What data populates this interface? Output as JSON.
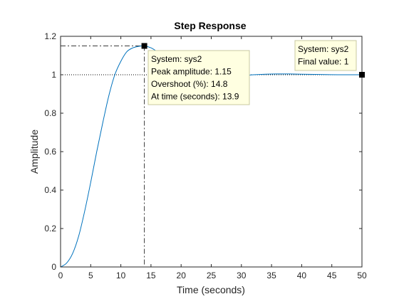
{
  "chart_data": {
    "type": "line",
    "title": "Step Response",
    "xlabel": "Time (seconds)",
    "ylabel": "Amplitude",
    "xlim": [
      0,
      50
    ],
    "ylim": [
      0,
      1.2
    ],
    "xticks": [
      0,
      5,
      10,
      15,
      20,
      25,
      30,
      35,
      40,
      45,
      50
    ],
    "yticks": [
      0,
      0.2,
      0.4,
      0.6,
      0.8,
      1,
      1.2
    ],
    "xtick_labels": [
      "0",
      "5",
      "10",
      "15",
      "20",
      "25",
      "30",
      "35",
      "40",
      "45",
      "50"
    ],
    "ytick_labels": [
      "0",
      "0.2",
      "0.4",
      "0.6",
      "0.8",
      "1",
      "1.2"
    ],
    "grid": false,
    "series": [
      {
        "name": "sys2",
        "color": "#0072bd",
        "x": [
          0,
          1,
          2,
          3,
          4,
          5,
          6,
          7,
          8,
          9,
          10,
          11,
          12,
          13,
          13.9,
          15,
          16,
          17,
          18,
          19,
          20,
          21,
          22,
          24,
          26,
          28,
          30,
          32,
          34,
          36,
          38,
          40,
          42,
          44,
          46,
          48,
          50
        ],
        "y": [
          0,
          0.02,
          0.07,
          0.16,
          0.29,
          0.44,
          0.6,
          0.75,
          0.89,
          1.0,
          1.07,
          1.12,
          1.14,
          1.148,
          1.15,
          1.14,
          1.12,
          1.09,
          1.06,
          1.03,
          1.01,
          0.995,
          0.985,
          0.98,
          0.985,
          0.99,
          0.995,
          1.0,
          1.003,
          1.004,
          1.004,
          1.003,
          1.002,
          1.001,
          1.0,
          1.0,
          1.0
        ]
      }
    ],
    "final_value_line": {
      "y": 1,
      "style": "dotted"
    },
    "datatips": [
      {
        "id": "peak",
        "x": 13.9,
        "y": 1.15,
        "lines": [
          "System: sys2",
          "Peak amplitude: 1.15",
          "Overshoot (%): 14.8",
          "At time (seconds): 13.9"
        ]
      },
      {
        "id": "final",
        "x": 50,
        "y": 1,
        "lines": [
          "System: sys2",
          "Final value: 1"
        ]
      }
    ]
  }
}
